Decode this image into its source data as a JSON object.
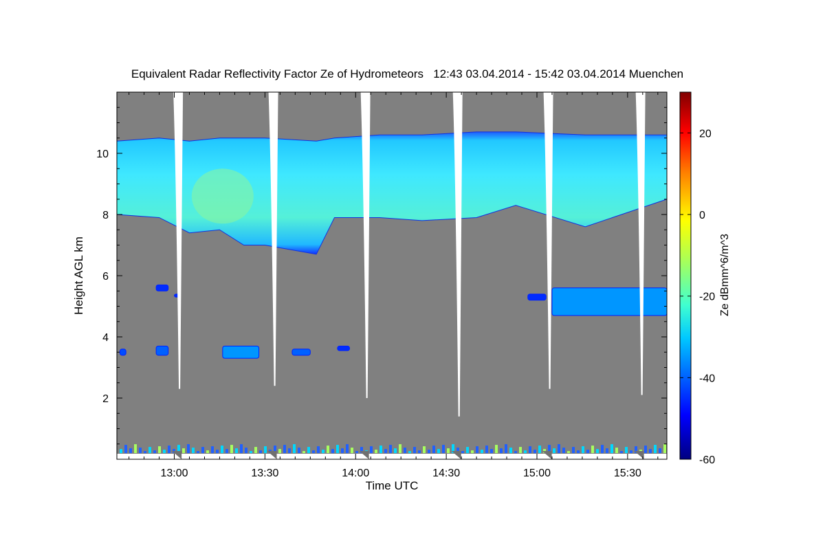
{
  "chart_data": {
    "type": "heatmap",
    "title": "Equivalent Radar Reflectivity Factor Ze of Hydrometeors   12:43 03.04.2014 - 15:42 03.04.2014 Muenchen",
    "xlabel": "Time UTC",
    "ylabel": "Height AGL km",
    "colorbar_label": "Ze dBmm^6/m^3",
    "x_ticks": [
      "13:00",
      "13:30",
      "14:00",
      "14:30",
      "15:00",
      "15:30"
    ],
    "x_tick_minutes": [
      780,
      810,
      840,
      870,
      900,
      930
    ],
    "xlim_minutes": [
      761,
      943
    ],
    "y_ticks": [
      2,
      4,
      6,
      8,
      10
    ],
    "ylim": [
      0,
      12
    ],
    "colorbar_ticks": [
      20,
      0,
      -20,
      -40,
      -60
    ],
    "colorbar_range": [
      -60,
      30
    ],
    "colorscale": [
      "#000080",
      "#0000ff",
      "#0080ff",
      "#00ffff",
      "#80ff80",
      "#ffff00",
      "#ff8000",
      "#ff0000",
      "#800000"
    ],
    "background_color": "#808080",
    "gaps": [
      {
        "minute": 781.5,
        "bottom_km": 2.3
      },
      {
        "minute": 813,
        "bottom_km": 2.4
      },
      {
        "minute": 843.5,
        "bottom_km": 2.0
      },
      {
        "minute": 874,
        "bottom_km": 1.4
      },
      {
        "minute": 904,
        "bottom_km": 2.3
      },
      {
        "minute": 934.5,
        "bottom_km": 2.1
      }
    ],
    "cirrus_layer": {
      "top_km": [
        10.4,
        10.5,
        10.4,
        10.5,
        10.5,
        10.5,
        10.4,
        10.5,
        10.6,
        10.6,
        10.7,
        10.7,
        10.6,
        10.6
      ],
      "base_km": [
        8.0,
        7.9,
        7.4,
        7.5,
        7.0,
        7.0,
        6.7,
        7.9,
        7.9,
        7.8,
        7.9,
        8.3,
        7.6,
        8.5
      ],
      "base_minutes": [
        761,
        775,
        785,
        795,
        803,
        810,
        827,
        833,
        848,
        862,
        880,
        893,
        916,
        943
      ],
      "ze_typical_dbz": -28
    },
    "echo_patches": [
      {
        "t0": 774,
        "t1": 778,
        "z0": 5.5,
        "z1": 5.7,
        "ze": -45
      },
      {
        "t0": 780,
        "t1": 782,
        "z0": 5.3,
        "z1": 5.4,
        "ze": -45
      },
      {
        "t0": 762,
        "t1": 764,
        "z0": 3.4,
        "z1": 3.6,
        "ze": -42
      },
      {
        "t0": 774,
        "t1": 778,
        "z0": 3.4,
        "z1": 3.7,
        "ze": -40
      },
      {
        "t0": 796,
        "t1": 808,
        "z0": 3.3,
        "z1": 3.7,
        "ze": -35
      },
      {
        "t0": 819,
        "t1": 825,
        "z0": 3.4,
        "z1": 3.6,
        "ze": -40
      },
      {
        "t0": 834,
        "t1": 838,
        "z0": 3.55,
        "z1": 3.7,
        "ze": -45
      },
      {
        "t0": 897,
        "t1": 903,
        "z0": 5.2,
        "z1": 5.4,
        "ze": -45
      },
      {
        "t0": 905,
        "t1": 943,
        "z0": 4.7,
        "z1": 5.6,
        "ze": -35
      }
    ],
    "surface_clutter_km": [
      0.2,
      0.6
    ]
  }
}
